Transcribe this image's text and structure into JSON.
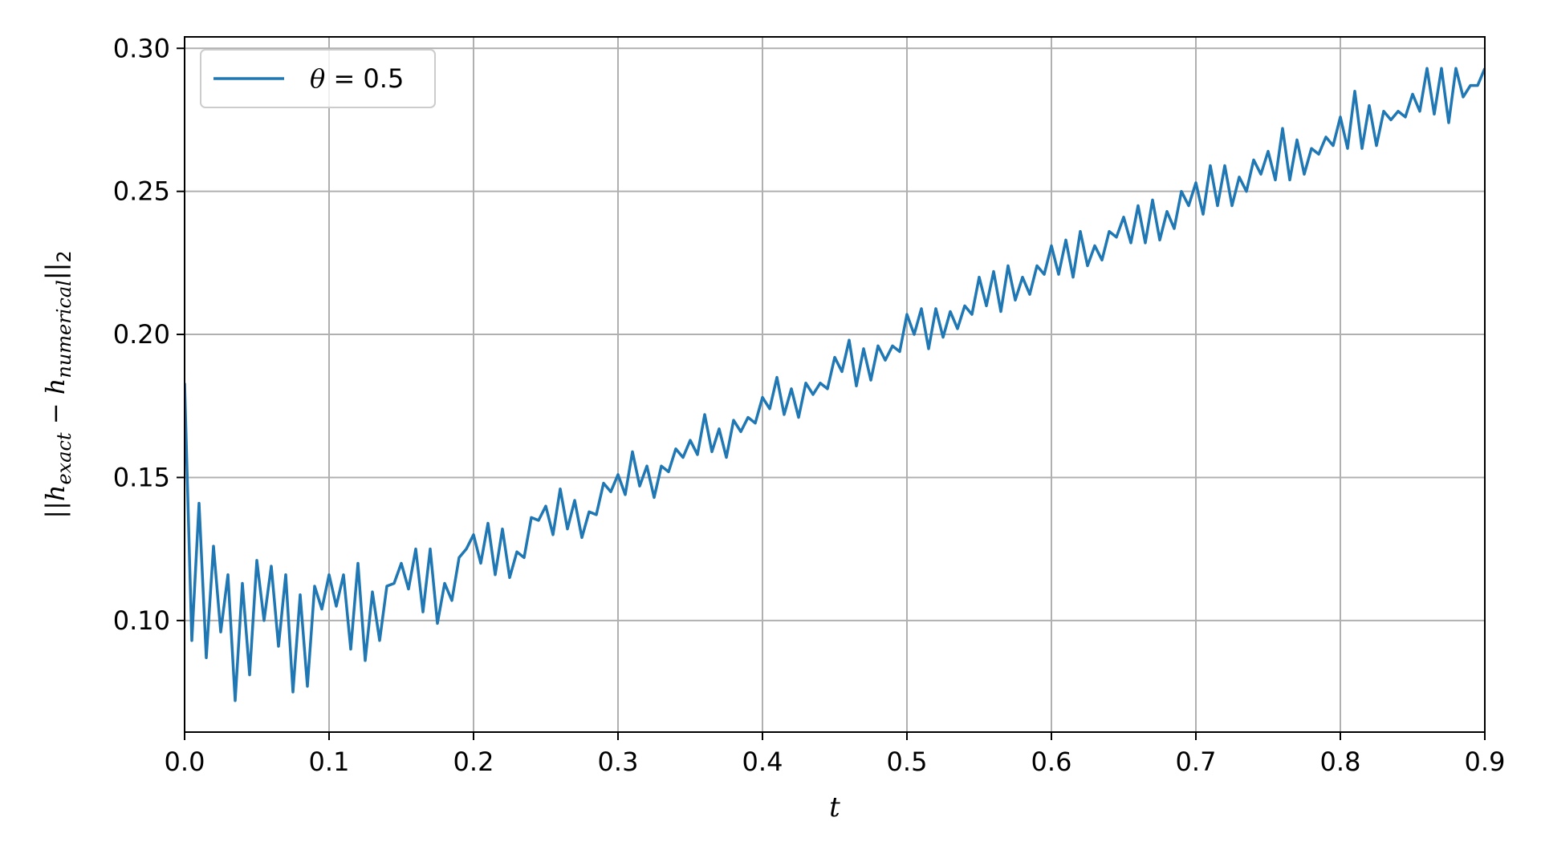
{
  "chart_data": {
    "type": "line",
    "xlabel": "t",
    "ylabel": {
      "prefix": "||h",
      "sub1": "exact",
      "mid": " − h",
      "sub2": "numerical",
      "suffix": "||",
      "sub3": "2"
    },
    "xlim": [
      0.0,
      0.9
    ],
    "ylim": [
      0.061,
      0.304
    ],
    "x_ticks": [
      0.0,
      0.1,
      0.2,
      0.3,
      0.4,
      0.5,
      0.6,
      0.7,
      0.8,
      0.9
    ],
    "x_tick_labels": [
      "0.0",
      "0.1",
      "0.2",
      "0.3",
      "0.4",
      "0.5",
      "0.6",
      "0.7",
      "0.8",
      "0.9"
    ],
    "y_ticks": [
      0.1,
      0.15,
      0.2,
      0.25,
      0.3
    ],
    "y_tick_labels": [
      "0.10",
      "0.15",
      "0.20",
      "0.25",
      "0.30"
    ],
    "grid": true,
    "legend_position": "upper-left",
    "colors": {
      "series": "#1f77b4",
      "grid": "#b0b0b0",
      "axis": "#000000"
    },
    "series": [
      {
        "name": "θ = 0.5",
        "name_parts": {
          "symbol": "θ",
          "rest": " = 0.5"
        },
        "dt": 0.005,
        "y": [
          0.183,
          0.093,
          0.141,
          0.087,
          0.126,
          0.096,
          0.116,
          0.072,
          0.113,
          0.081,
          0.121,
          0.1,
          0.119,
          0.091,
          0.116,
          0.075,
          0.109,
          0.077,
          0.112,
          0.104,
          0.116,
          0.105,
          0.116,
          0.09,
          0.12,
          0.086,
          0.11,
          0.093,
          0.112,
          0.113,
          0.12,
          0.111,
          0.125,
          0.103,
          0.125,
          0.099,
          0.113,
          0.107,
          0.122,
          0.125,
          0.13,
          0.12,
          0.134,
          0.116,
          0.132,
          0.115,
          0.124,
          0.122,
          0.136,
          0.135,
          0.14,
          0.13,
          0.146,
          0.132,
          0.142,
          0.129,
          0.138,
          0.137,
          0.148,
          0.145,
          0.151,
          0.144,
          0.159,
          0.147,
          0.154,
          0.143,
          0.154,
          0.152,
          0.16,
          0.157,
          0.163,
          0.158,
          0.172,
          0.159,
          0.167,
          0.157,
          0.17,
          0.166,
          0.171,
          0.169,
          0.178,
          0.174,
          0.185,
          0.172,
          0.181,
          0.171,
          0.183,
          0.179,
          0.183,
          0.181,
          0.192,
          0.187,
          0.198,
          0.182,
          0.195,
          0.184,
          0.196,
          0.191,
          0.196,
          0.194,
          0.207,
          0.2,
          0.209,
          0.195,
          0.209,
          0.199,
          0.208,
          0.202,
          0.21,
          0.207,
          0.22,
          0.21,
          0.222,
          0.208,
          0.224,
          0.212,
          0.22,
          0.214,
          0.224,
          0.221,
          0.231,
          0.221,
          0.233,
          0.22,
          0.236,
          0.224,
          0.231,
          0.226,
          0.236,
          0.234,
          0.241,
          0.232,
          0.245,
          0.232,
          0.247,
          0.233,
          0.243,
          0.237,
          0.25,
          0.245,
          0.253,
          0.242,
          0.259,
          0.245,
          0.259,
          0.245,
          0.255,
          0.25,
          0.261,
          0.256,
          0.264,
          0.254,
          0.272,
          0.254,
          0.268,
          0.256,
          0.265,
          0.263,
          0.269,
          0.266,
          0.276,
          0.265,
          0.285,
          0.265,
          0.28,
          0.266,
          0.278,
          0.275,
          0.278,
          0.276,
          0.284,
          0.278,
          0.293,
          0.277,
          0.293,
          0.274,
          0.293,
          0.283,
          0.287,
          0.287,
          0.293
        ]
      }
    ]
  }
}
